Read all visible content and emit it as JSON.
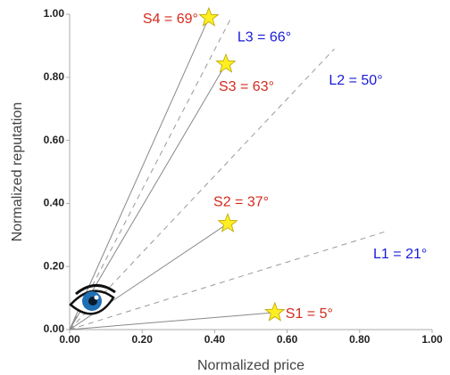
{
  "chart_data": {
    "type": "scatter",
    "xlabel": "Normalized price",
    "ylabel": "Normalized reputation",
    "xlim": [
      0,
      1
    ],
    "ylim": [
      0,
      1
    ],
    "xticks": [
      {
        "value": 0,
        "label": "0.00"
      },
      {
        "value": 0.2,
        "label": "0.20"
      },
      {
        "value": 0.4,
        "label": "0.40"
      },
      {
        "value": 0.6,
        "label": "0.60"
      },
      {
        "value": 0.8,
        "label": "0.80"
      },
      {
        "value": 1,
        "label": "1.00"
      }
    ],
    "yticks": [
      {
        "value": 0,
        "label": "0.00"
      },
      {
        "value": 0.2,
        "label": "0.20"
      },
      {
        "value": 0.4,
        "label": "0.40"
      },
      {
        "value": 0.6,
        "label": "0.60"
      },
      {
        "value": 0.8,
        "label": "0.80"
      },
      {
        "value": 1,
        "label": "1.00"
      }
    ],
    "stars": {
      "x": [
        0.566,
        0.436,
        0.431,
        0.384
      ],
      "y": [
        0.054,
        0.336,
        0.842,
        0.989
      ],
      "labels": [
        "S1 = 5°",
        "S2 = 37°",
        "S3 = 63°",
        "S4 = 69°"
      ],
      "color": "#ffee22",
      "label_color": "#d42a1c"
    },
    "dashed_lines": {
      "x": [
        0.872,
        0.73,
        0.448
      ],
      "y": [
        0.311,
        0.89,
        0.994
      ],
      "labels": [
        "L1 = 21°",
        "L2 = 50°",
        "L3 = 66°"
      ],
      "label_color": "#1a1ad8"
    }
  }
}
